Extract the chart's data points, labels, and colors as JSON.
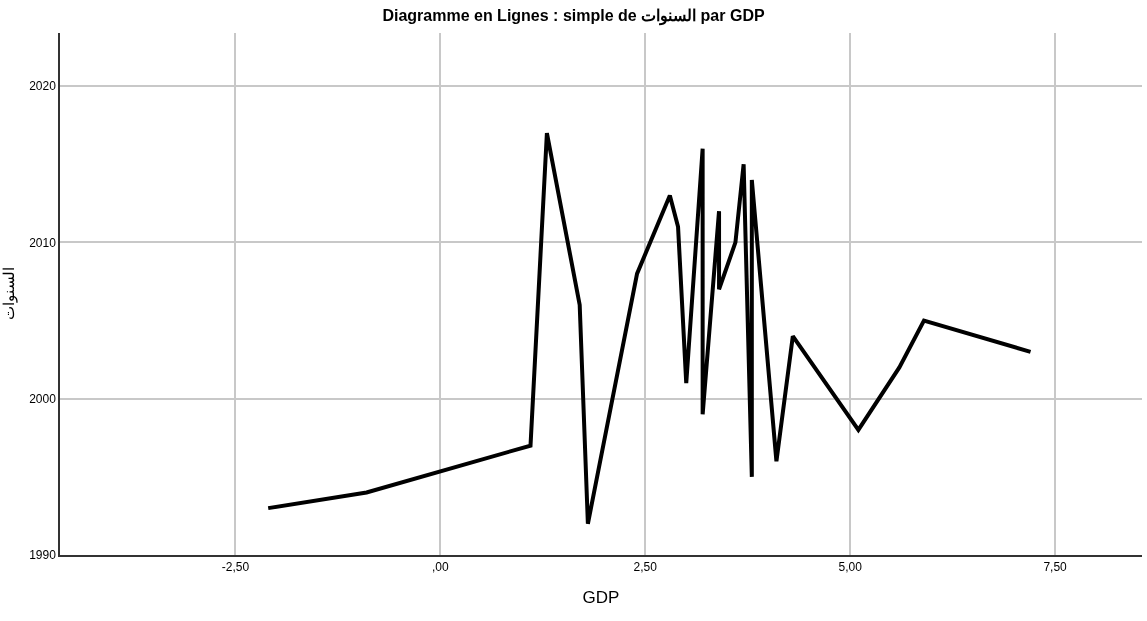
{
  "chart_data": {
    "type": "line",
    "title": "Diagramme en Lignes : simple de السنوات par GDP",
    "xlabel": "GDP",
    "ylabel": "السنوات",
    "x": [
      -2.1,
      -0.9,
      1.1,
      1.3,
      1.7,
      1.8,
      2.4,
      2.8,
      2.9,
      3.0,
      3.2,
      3.2,
      3.4,
      3.4,
      3.6,
      3.7,
      3.8,
      3.8,
      4.1,
      4.3,
      5.1,
      5.6,
      5.9,
      7.2
    ],
    "series": [
      {
        "color": "#000000",
        "values": [
          1993,
          1994,
          1997,
          2017,
          2006,
          1992,
          2008,
          2013,
          2011,
          2001,
          2016,
          1999,
          2012,
          2007,
          2010,
          2015,
          1995,
          2014,
          1996,
          2004,
          1998,
          2002,
          2005,
          2003
        ]
      }
    ],
    "xlim": [
      -4.64,
      8.56
    ],
    "ylim": [
      1990,
      2023.4
    ],
    "xticks": [
      {
        "value": -2.5,
        "label": "-2,50"
      },
      {
        "value": 0,
        "label": ",00"
      },
      {
        "value": 2.5,
        "label": "2,50"
      },
      {
        "value": 5,
        "label": "5,00"
      },
      {
        "value": 7.5,
        "label": "7,50"
      }
    ],
    "yticks": [
      1990,
      2000,
      2010,
      2020
    ],
    "grid": true,
    "marker": "none",
    "line_style": "solid"
  }
}
